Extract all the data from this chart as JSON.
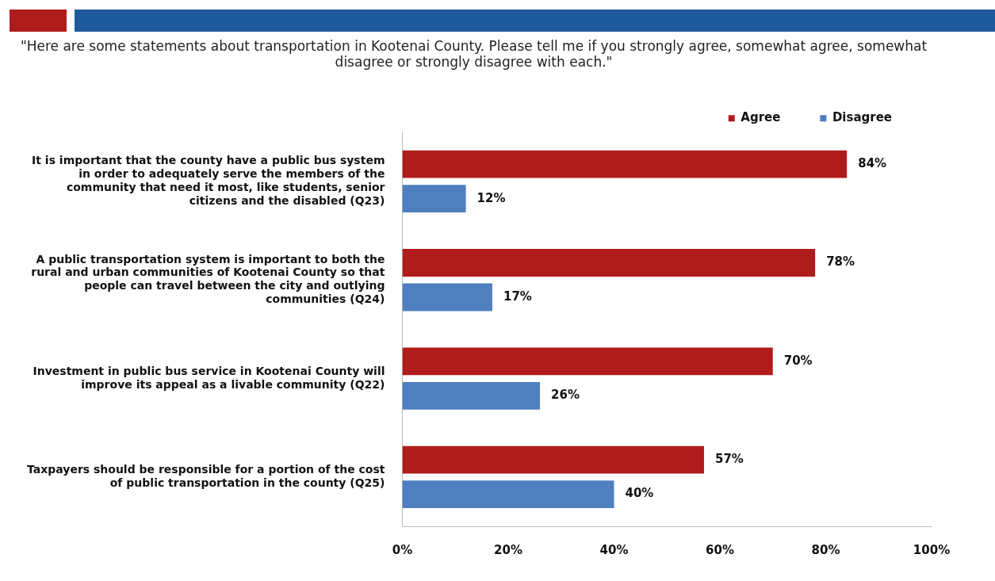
{
  "chart_data": {
    "type": "bar",
    "orientation": "horizontal",
    "title": "\"Here are some statements about transportation in Kootenai County.  Please tell me if you strongly agree, somewhat agree, somewhat disagree or strongly disagree with each.\"",
    "categories": [
      "It is important that the county have a public bus system in order to adequately serve the members of the community that need it most, like students, senior citizens and the disabled (Q23)",
      "A public transportation system is important to both the rural and urban communities of Kootenai County so that people can travel between the city and outlying communities (Q24)",
      "Investment in public bus service in Kootenai County will improve its appeal as a livable community (Q22)",
      "Taxpayers should be responsible for a portion of the cost of public transportation in the county (Q25)"
    ],
    "series": [
      {
        "name": "Agree",
        "color": "#b01c1c",
        "values": [
          84,
          78,
          70,
          57
        ],
        "value_labels": [
          "84%",
          "78%",
          "70%",
          "57%"
        ]
      },
      {
        "name": "Disagree",
        "color": "#4f7fbf",
        "values": [
          12,
          17,
          26,
          40
        ],
        "value_labels": [
          "12%",
          "17%",
          "26%",
          "40%"
        ]
      }
    ],
    "xlim": [
      0,
      100
    ],
    "xticks": [
      {
        "value": 0,
        "label": "0%"
      },
      {
        "value": 20,
        "label": "20%"
      },
      {
        "value": 40,
        "label": "40%"
      },
      {
        "value": 60,
        "label": "60%"
      },
      {
        "value": 80,
        "label": "80%"
      },
      {
        "value": 100,
        "label": "100%"
      }
    ],
    "grid": false,
    "legend": "top right"
  }
}
